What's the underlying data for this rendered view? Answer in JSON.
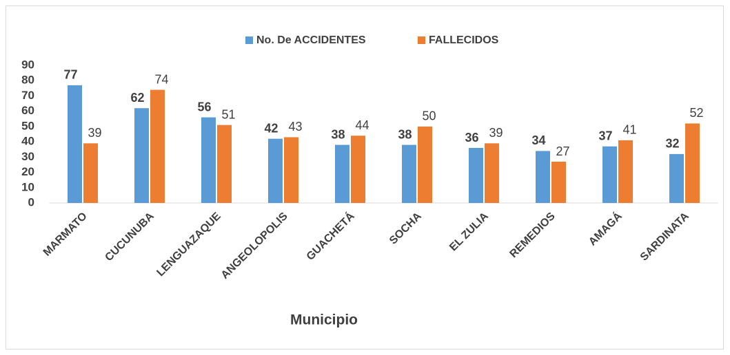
{
  "chart_data": {
    "type": "bar",
    "categories": [
      "MARMATO",
      "CUCUNUBA",
      "LENGUAZAQUE",
      "ANGEOLOPOLIS",
      "GUACHETÁ",
      "SOCHA",
      "EL ZULIA",
      "REMEDIOS",
      "AMAGÁ",
      "SARDINATA"
    ],
    "series": [
      {
        "name": "No. De ACCIDENTES",
        "color": "#5b9bd5",
        "values": [
          77,
          62,
          56,
          42,
          38,
          38,
          36,
          34,
          37,
          32
        ]
      },
      {
        "name": "FALLECIDOS",
        "color": "#ed7d31",
        "values": [
          39,
          74,
          51,
          43,
          44,
          50,
          39,
          27,
          41,
          52
        ]
      }
    ],
    "x_label": "Municipio",
    "ylim": [
      0,
      90
    ],
    "yticks": [
      0,
      10,
      20,
      30,
      40,
      50,
      60,
      70,
      80,
      90
    ],
    "grid": false,
    "legend": "top"
  }
}
